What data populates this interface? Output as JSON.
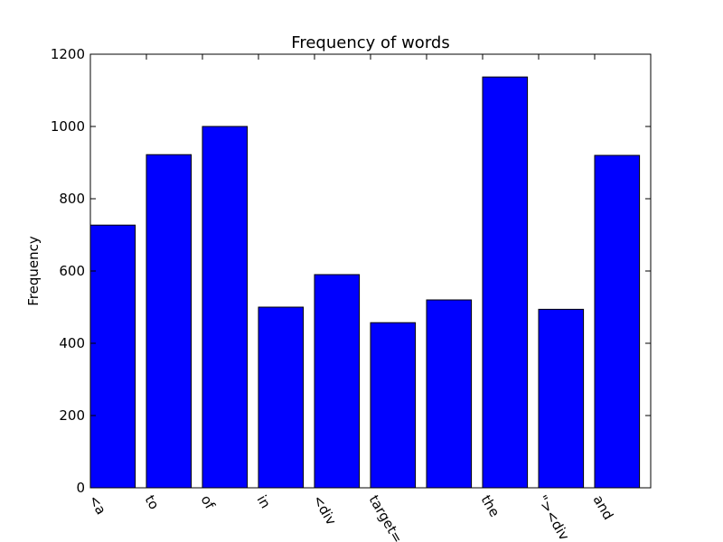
{
  "chart_data": {
    "type": "bar",
    "title": "Frequency of words",
    "xlabel": "",
    "ylabel": "Frequency",
    "categories": [
      "<a",
      "to",
      "of",
      "in",
      "<div",
      "target=",
      "\n",
      "the",
      "\"><div",
      "and"
    ],
    "values": [
      727,
      922,
      1000,
      500,
      590,
      457,
      520,
      1137,
      494,
      920
    ],
    "ylim": [
      0,
      1200
    ],
    "yticks": [
      0,
      200,
      400,
      600,
      800,
      1000,
      1200
    ],
    "colors": {
      "bar": "#0000ff",
      "edge": "#000000"
    },
    "grid": false
  }
}
